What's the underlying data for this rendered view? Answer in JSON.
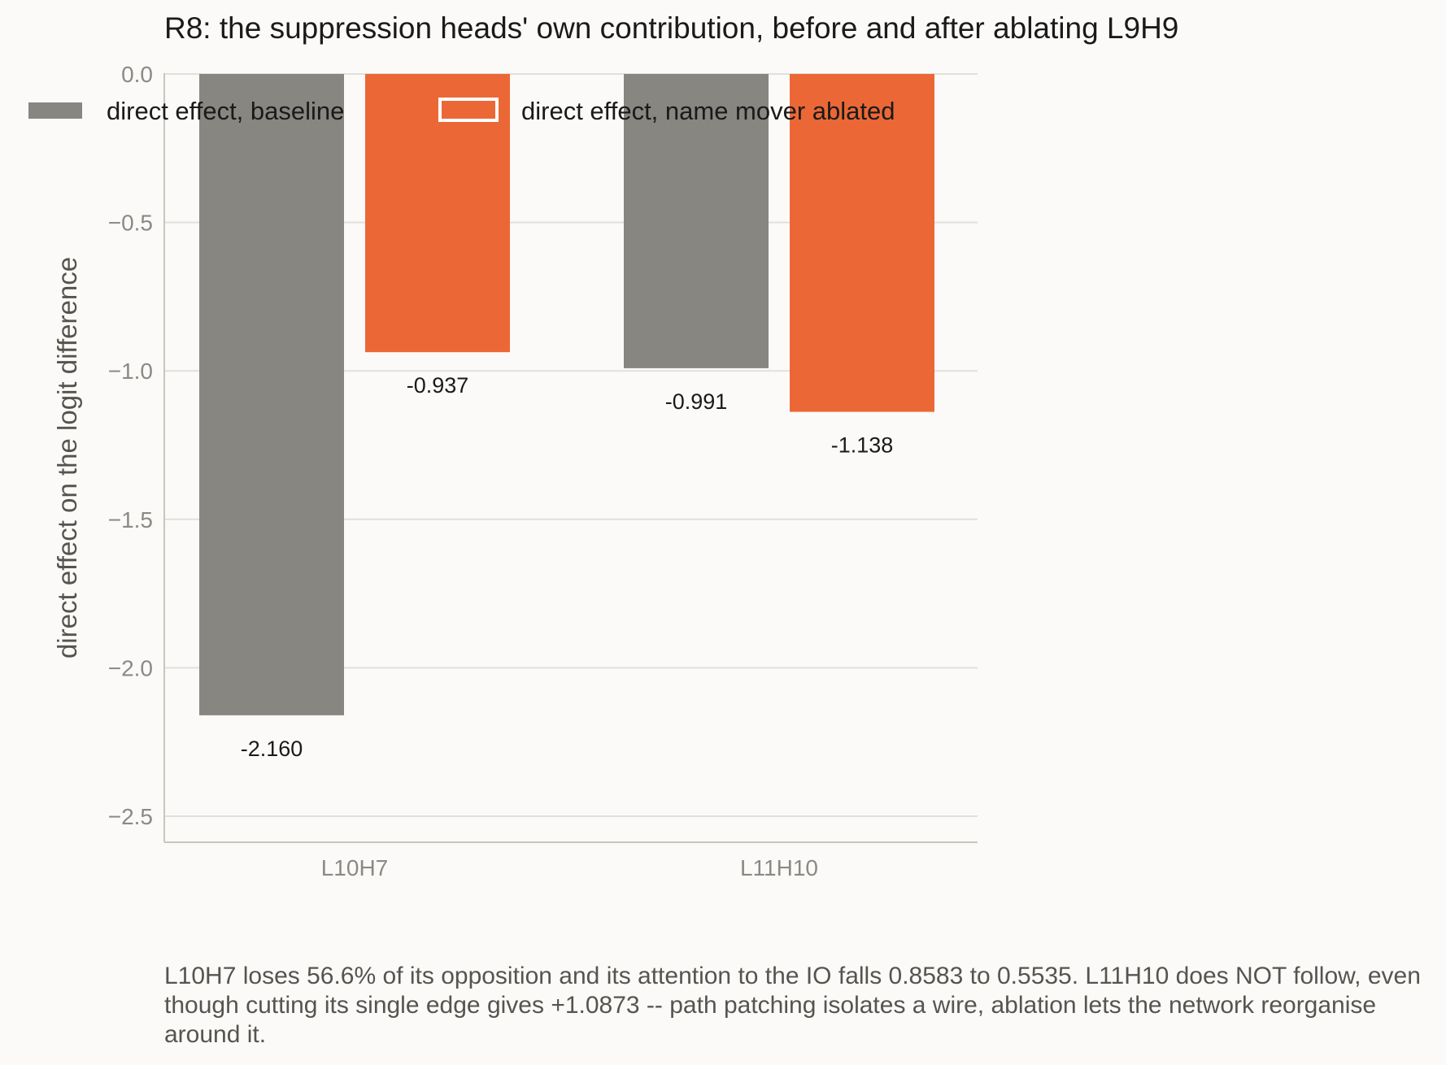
{
  "chart_data": {
    "type": "bar",
    "title": "R8: the suppression heads' own contribution, before and after ablating L9H9",
    "xlabel": "",
    "ylabel": "direct effect on the logit difference",
    "categories": [
      "L10H7",
      "L11H10"
    ],
    "series": [
      {
        "name": "direct effect, baseline",
        "values": [
          -2.16,
          -0.991
        ],
        "labels": [
          "-2.160",
          "-0.991"
        ],
        "color": "#878681"
      },
      {
        "name": "direct effect, name mover ablated",
        "values": [
          -0.937,
          -1.138
        ],
        "labels": [
          "-0.937",
          "-1.138"
        ],
        "color": "#eb6836"
      }
    ],
    "ylim": [
      -2.6,
      0.0
    ],
    "yticks": [
      0.0,
      -0.5,
      -1.0,
      -1.5,
      -2.0,
      -2.5
    ],
    "ytick_labels": [
      "0.0",
      "−0.5",
      "−1.0",
      "−1.5",
      "−2.0",
      "−2.5"
    ],
    "grid": true,
    "legend_position": "top"
  },
  "caption": "L10H7 loses 56.6% of its opposition and its attention to the IO falls 0.8583 to 0.5535. L11H10 does NOT follow, even though cutting its single edge gives +1.0873 -- path patching isolates a wire, ablation lets the network reorganise around it."
}
